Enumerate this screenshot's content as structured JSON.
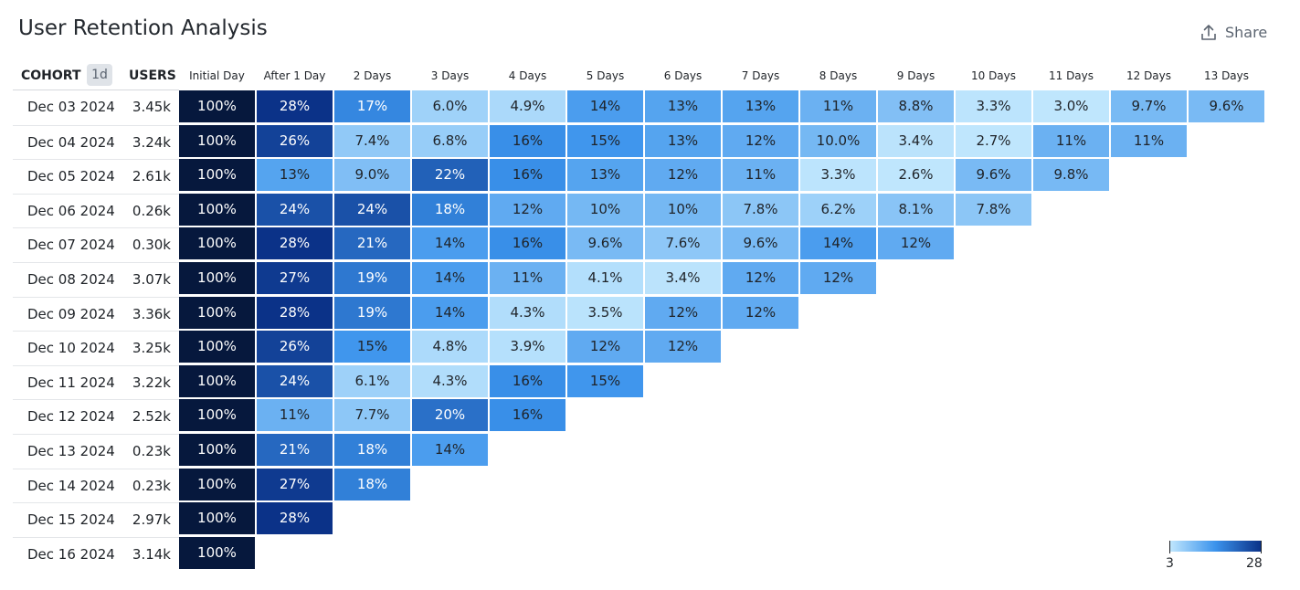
{
  "title": "User Retention Analysis",
  "share_label": "Share",
  "cohort_header": "COHORT",
  "interval_badge": "1d",
  "users_header": "USERS",
  "legend": {
    "min_label": "3",
    "max_label": "28"
  },
  "colors": {
    "initial": "#06183d",
    "scale_low": "#bfe6fd",
    "scale_mid": "#3b93ec",
    "scale_high": "#0b3288"
  },
  "chart_data": {
    "type": "heatmap",
    "title": "User Retention Analysis",
    "columns": [
      "Initial Day",
      "After 1 Day",
      "2 Days",
      "3 Days",
      "4 Days",
      "5 Days",
      "6 Days",
      "7 Days",
      "8 Days",
      "9 Days",
      "10 Days",
      "11 Days",
      "12 Days",
      "13 Days"
    ],
    "rows": [
      {
        "cohort": "Dec 03 2024",
        "users": "3.45k",
        "cells": [
          "100%",
          "28%",
          "17%",
          "6.0%",
          "4.9%",
          "14%",
          "13%",
          "13%",
          "11%",
          "8.8%",
          "3.3%",
          "3.0%",
          "9.7%",
          "9.6%"
        ]
      },
      {
        "cohort": "Dec 04 2024",
        "users": "3.24k",
        "cells": [
          "100%",
          "26%",
          "7.4%",
          "6.8%",
          "16%",
          "15%",
          "13%",
          "12%",
          "10.0%",
          "3.4%",
          "2.7%",
          "11%",
          "11%"
        ]
      },
      {
        "cohort": "Dec 05 2024",
        "users": "2.61k",
        "cells": [
          "100%",
          "13%",
          "9.0%",
          "22%",
          "16%",
          "13%",
          "12%",
          "11%",
          "3.3%",
          "2.6%",
          "9.6%",
          "9.8%"
        ]
      },
      {
        "cohort": "Dec 06 2024",
        "users": "0.26k",
        "cells": [
          "100%",
          "24%",
          "24%",
          "18%",
          "12%",
          "10%",
          "10%",
          "7.8%",
          "6.2%",
          "8.1%",
          "7.8%"
        ]
      },
      {
        "cohort": "Dec 07 2024",
        "users": "0.30k",
        "cells": [
          "100%",
          "28%",
          "21%",
          "14%",
          "16%",
          "9.6%",
          "7.6%",
          "9.6%",
          "14%",
          "12%"
        ]
      },
      {
        "cohort": "Dec 08 2024",
        "users": "3.07k",
        "cells": [
          "100%",
          "27%",
          "19%",
          "14%",
          "11%",
          "4.1%",
          "3.4%",
          "12%",
          "12%"
        ]
      },
      {
        "cohort": "Dec 09 2024",
        "users": "3.36k",
        "cells": [
          "100%",
          "28%",
          "19%",
          "14%",
          "4.3%",
          "3.5%",
          "12%",
          "12%"
        ]
      },
      {
        "cohort": "Dec 10 2024",
        "users": "3.25k",
        "cells": [
          "100%",
          "26%",
          "15%",
          "4.8%",
          "3.9%",
          "12%",
          "12%"
        ]
      },
      {
        "cohort": "Dec 11 2024",
        "users": "3.22k",
        "cells": [
          "100%",
          "24%",
          "6.1%",
          "4.3%",
          "16%",
          "15%"
        ]
      },
      {
        "cohort": "Dec 12 2024",
        "users": "2.52k",
        "cells": [
          "100%",
          "11%",
          "7.7%",
          "20%",
          "16%"
        ]
      },
      {
        "cohort": "Dec 13 2024",
        "users": "0.23k",
        "cells": [
          "100%",
          "21%",
          "18%",
          "14%"
        ]
      },
      {
        "cohort": "Dec 14 2024",
        "users": "0.23k",
        "cells": [
          "100%",
          "27%",
          "18%"
        ]
      },
      {
        "cohort": "Dec 15 2024",
        "users": "2.97k",
        "cells": [
          "100%",
          "28%"
        ]
      },
      {
        "cohort": "Dec 16 2024",
        "users": "3.14k",
        "cells": [
          "100%"
        ]
      }
    ],
    "color_scale": {
      "min": 3,
      "max": 28
    }
  }
}
